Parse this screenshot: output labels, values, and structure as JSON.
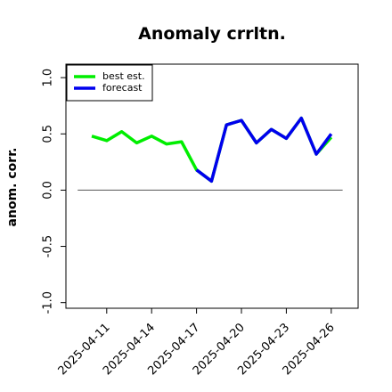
{
  "chart_data": {
    "type": "line",
    "title": "Anomaly crrltn.",
    "ylabel": "anom. corr.",
    "categories": [
      null,
      "2025-04-11",
      null,
      null,
      "2025-04-14",
      null,
      null,
      "2025-04-17",
      null,
      null,
      "2025-04-20",
      null,
      null,
      "2025-04-23",
      null,
      null,
      "2025-04-26"
    ],
    "series": [
      {
        "name": "best est.",
        "color": "#00ee00",
        "values": [
          0.48,
          0.44,
          0.52,
          0.42,
          0.48,
          0.41,
          0.43,
          0.18,
          0.08,
          0.58,
          0.62,
          0.42,
          0.54,
          0.46,
          0.64,
          0.32,
          0.47
        ]
      },
      {
        "name": "forecast",
        "color": "#0000ee",
        "values": [
          null,
          null,
          null,
          null,
          null,
          null,
          null,
          0.18,
          0.08,
          0.58,
          0.62,
          0.42,
          0.54,
          0.46,
          0.64,
          0.32,
          0.5
        ]
      }
    ],
    "ylim": [
      -1.05,
      1.12
    ],
    "yticks": [
      {
        "value": -1,
        "label": "-1.0"
      },
      -0.5,
      {
        "value": 0,
        "label": "0.0"
      },
      0.5,
      {
        "value": 1,
        "label": "1.0"
      }
    ],
    "hline": 0,
    "legend": "upper left",
    "highlight_index": 7,
    "highlight_color": "#228b22"
  }
}
